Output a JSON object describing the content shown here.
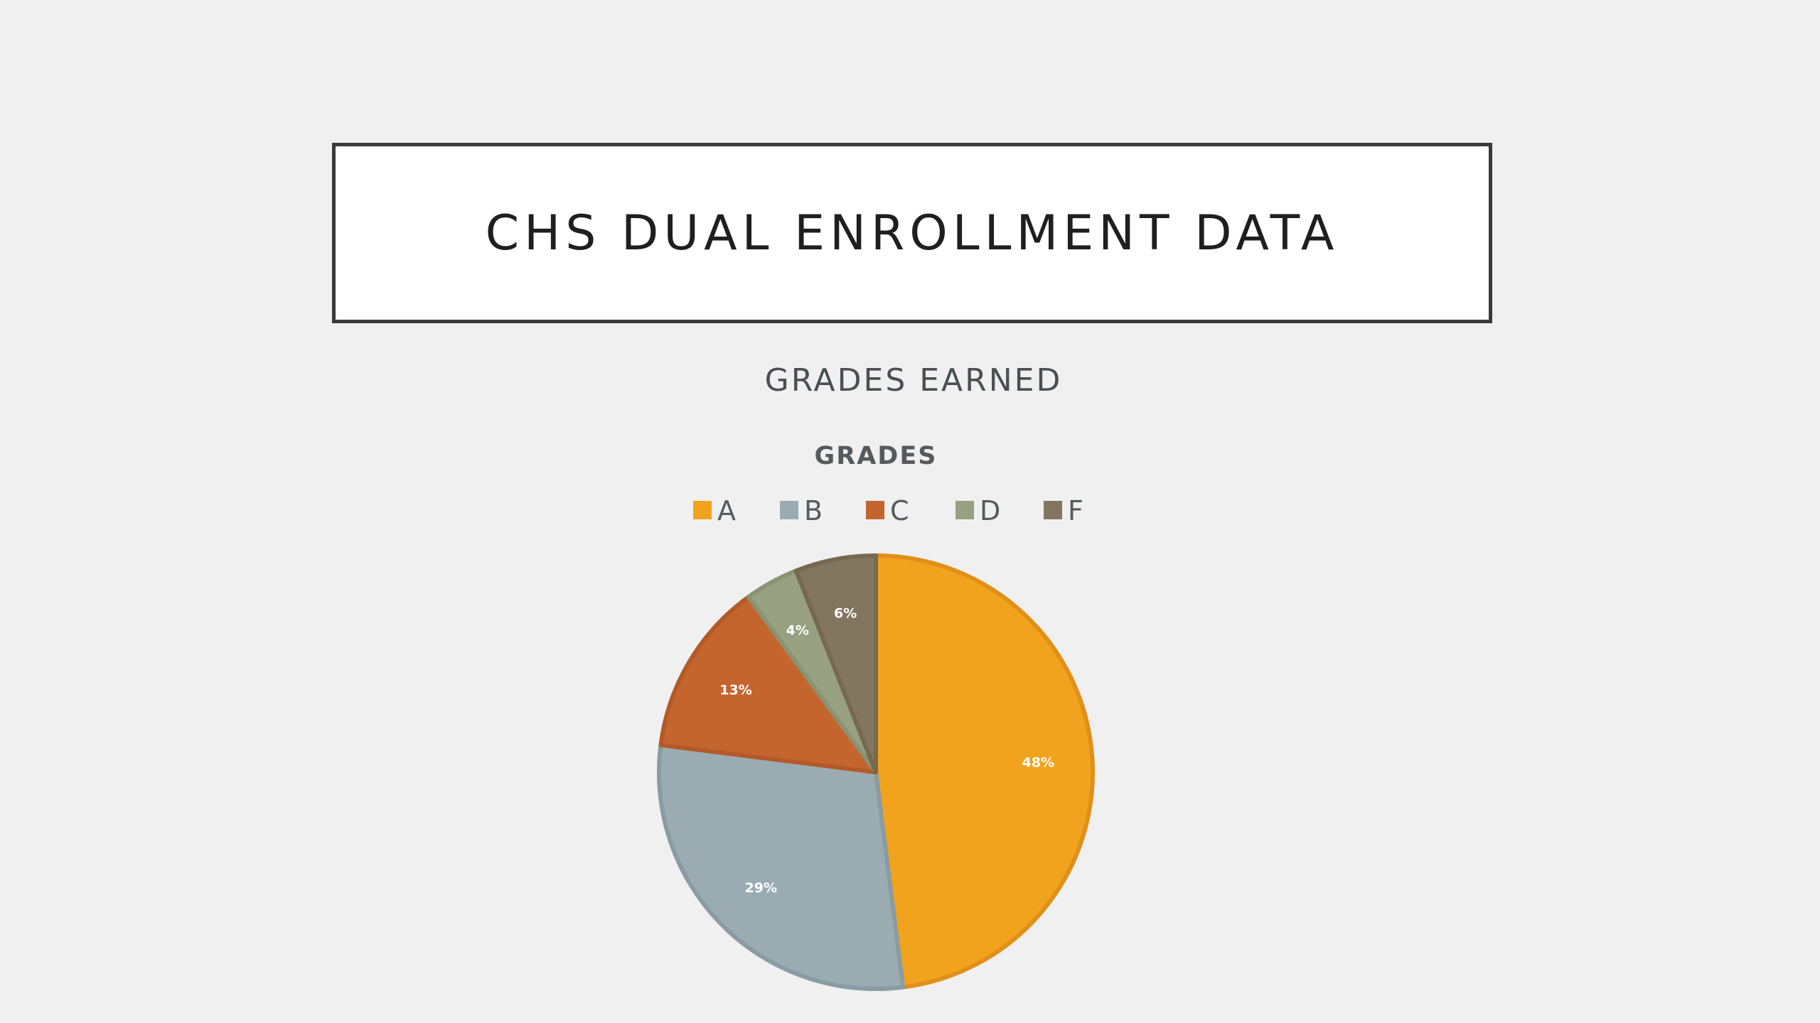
{
  "slide": {
    "title": "CHS DUAL ENROLLMENT DATA",
    "subtitle": "GRADES EARNED"
  },
  "chart_data": {
    "type": "pie",
    "title": "GRADES",
    "legend_position": "top",
    "categories": [
      "A",
      "B",
      "C",
      "D",
      "F"
    ],
    "values": [
      48,
      29,
      13,
      4,
      6
    ],
    "labels": [
      "48%",
      "29%",
      "13%",
      "4%",
      "6%"
    ],
    "colors": [
      "#f2a31d",
      "#9aacb2",
      "#c4652e",
      "#97a080",
      "#837660"
    ],
    "border_colors": [
      "#e08f17",
      "#899ca3",
      "#b35a28",
      "#8a9373",
      "#76694f"
    ]
  }
}
